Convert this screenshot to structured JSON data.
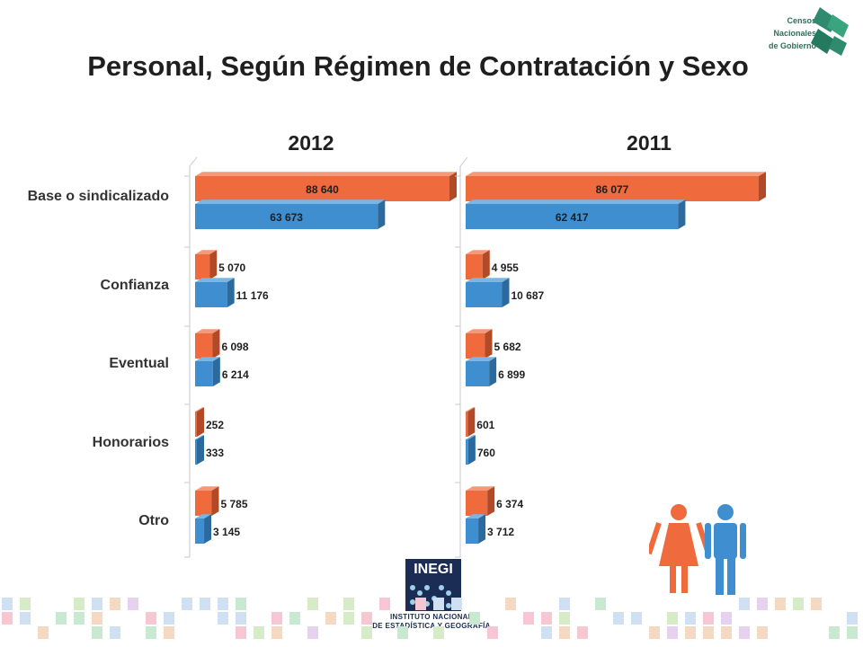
{
  "title": "Personal, Según Régimen de Contratación y Sexo",
  "logo": {
    "lines": [
      "Censos",
      "Nacionales",
      "de Gobierno"
    ]
  },
  "inegi": {
    "word": "INEGI",
    "line1": "INSTITUTO NACIONAL",
    "line2": "DE ESTADÍSTICA Y GEOGRAFÍA"
  },
  "colors": {
    "mujeres": "#ef6a3c",
    "hombres": "#3f8fd0",
    "logo_green": "#2f8a6e"
  },
  "chart_data": {
    "type": "bar",
    "orientation": "horizontal",
    "categories": [
      "Base o sindicalizado",
      "Confianza",
      "Eventual",
      "Honorarios",
      "Otro"
    ],
    "panels": [
      {
        "title": "2012",
        "series": [
          {
            "values": [
              88640,
              5070,
              6098,
              252,
              5785
            ],
            "labels": [
              "88 640",
              "5 070",
              "6 098",
              "252",
              "5 785"
            ]
          },
          {
            "values": [
              63673,
              11176,
              6214,
              333,
              3145
            ],
            "labels": [
              "63 673",
              "11 176",
              "6 214",
              "333",
              "3 145"
            ]
          }
        ]
      },
      {
        "title": "2011",
        "series": [
          {
            "values": [
              86077,
              4955,
              5682,
              601,
              6374
            ],
            "labels": [
              "86 077",
              "4 955",
              "5 682",
              "601",
              "6 374"
            ]
          },
          {
            "values": [
              62417,
              10687,
              6899,
              760,
              3712
            ],
            "labels": [
              "62 417",
              "10 687",
              "6 899",
              "760",
              "3 712"
            ]
          }
        ]
      }
    ],
    "legend": "none",
    "grid": false
  }
}
